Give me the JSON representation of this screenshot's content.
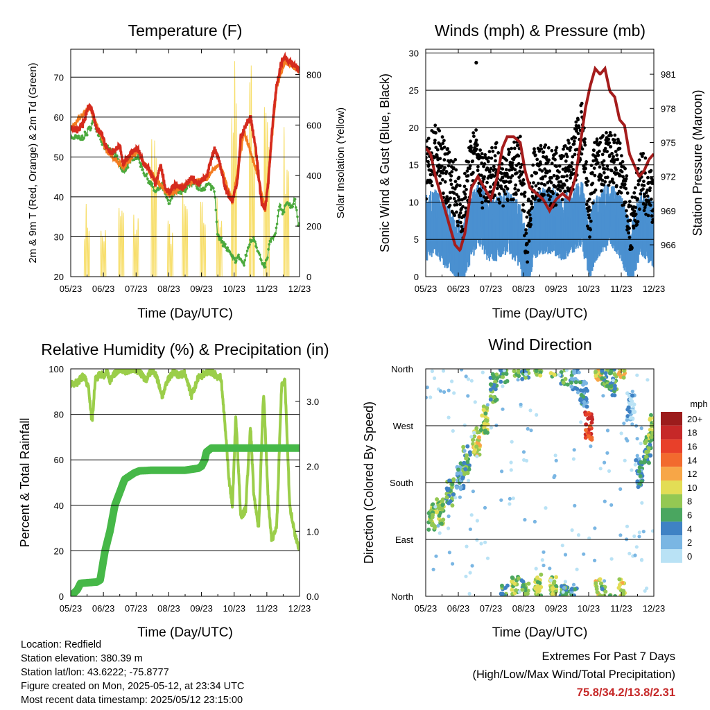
{
  "footer": {
    "location": "Location: Redfield",
    "elevation": "Station elevation: 380.39 m",
    "latlon": "Station lat/lon: 43.6222; -75.8777",
    "created": "Figure created on Mon, 2025-05-12, at 23:34 UTC",
    "recent": "Most recent data timestamp: 2025/05/12 23:15:00",
    "extremes_title": "Extremes For Past 7 Days",
    "extremes_sub": "(High/Low/Max Wind/Total Precipitation)",
    "extremes_values": "75.8/34.2/13.8/2.31"
  },
  "colors": {
    "temp2m": "#d52b1e",
    "temp9m": "#f47c20",
    "dewpoint": "#4aa93c",
    "solar": "#f7de6a",
    "wind": "#4a90d0",
    "gust": "#000000",
    "pressure": "#a51c1c",
    "rh": "#9bce4a",
    "precip": "#46b848"
  },
  "chart_data": [
    {
      "id": "temperature",
      "type": "line",
      "title": "Temperature (F)",
      "xlabel": "Time (Day/UTC)",
      "ylabel": "2m & 9m T (Red, Orange) & 2m Td (Green)",
      "ylabel_right": "Solar Insolation (Yellow)",
      "x_ticks": [
        "05/23",
        "06/23",
        "07/23",
        "08/23",
        "09/23",
        "10/23",
        "11/23",
        "12/23"
      ],
      "xlim": [
        0,
        7
      ],
      "ylim": [
        20,
        77
      ],
      "y_ticks": [
        20,
        30,
        40,
        50,
        60,
        70
      ],
      "ylim_right": [
        0,
        900
      ],
      "y_ticks_right": [
        0,
        200,
        400,
        600,
        800
      ],
      "grid": true,
      "series": [
        {
          "name": "2m T",
          "axis": "left",
          "color": "#d52b1e",
          "width": 4,
          "x": [
            0,
            0.2,
            0.4,
            0.55,
            0.65,
            0.8,
            0.95,
            1.1,
            1.25,
            1.5,
            1.6,
            1.75,
            1.9,
            2.05,
            2.25,
            2.4,
            2.6,
            2.75,
            2.9,
            3.0,
            3.2,
            3.45,
            3.6,
            3.75,
            3.9,
            4.0,
            4.15,
            4.4,
            4.55,
            4.7,
            4.85,
            4.95,
            5.1,
            5.2,
            5.3,
            5.5,
            5.65,
            5.75,
            5.85,
            5.95,
            6.05,
            6.15,
            6.3,
            6.45,
            6.55,
            6.7,
            6.85,
            7.0
          ],
          "y": [
            57.5,
            56.5,
            58.5,
            63,
            62,
            57,
            56,
            52,
            51,
            53,
            48,
            50,
            51.5,
            52,
            48,
            47,
            43,
            48,
            42,
            41,
            43,
            42,
            44,
            45,
            43,
            44,
            45,
            52,
            49,
            43,
            40,
            39,
            44,
            55,
            57,
            60,
            53,
            45,
            38,
            37,
            44,
            56,
            68,
            74,
            75,
            74,
            73,
            72
          ]
        },
        {
          "name": "9m T",
          "axis": "left",
          "color": "#f47c20",
          "width": 2,
          "x": [
            0,
            0.55,
            0.65,
            1.1,
            1.6,
            2.05,
            2.4,
            3.0,
            3.6,
            4.15,
            4.55,
            4.95,
            5.3,
            5.75,
            5.95,
            6.3,
            6.55,
            7.0
          ],
          "y": [
            57,
            62.5,
            61,
            51.5,
            47.5,
            51.5,
            46.5,
            40.5,
            43.5,
            44.5,
            48.5,
            38.5,
            56.5,
            44.5,
            36.5,
            67.5,
            74,
            71.5
          ]
        },
        {
          "name": "2m Td",
          "axis": "left",
          "color": "#4aa93c",
          "width": 2,
          "x": [
            0,
            0.3,
            0.5,
            0.7,
            0.85,
            1.0,
            1.2,
            1.4,
            1.6,
            1.75,
            1.9,
            2.05,
            2.25,
            2.4,
            2.6,
            2.8,
            3.0,
            3.2,
            3.4,
            3.6,
            3.8,
            4.0,
            4.2,
            4.4,
            4.5,
            4.7,
            4.85,
            5.0,
            5.15,
            5.3,
            5.45,
            5.6,
            5.75,
            5.9,
            6.0,
            6.1,
            6.25,
            6.4,
            6.5,
            6.6,
            6.75,
            6.85,
            6.95,
            7.0
          ],
          "y": [
            55,
            54.5,
            56,
            59,
            56,
            53,
            51.5,
            50,
            46,
            48,
            50,
            50,
            46,
            44,
            41,
            43,
            38,
            42,
            41,
            43,
            43,
            42,
            43,
            42,
            30,
            28,
            26,
            24,
            25,
            23,
            28,
            30,
            26,
            22,
            24,
            29,
            30,
            38,
            36,
            39,
            37,
            40,
            34,
            32
          ]
        },
        {
          "name": "Solar Insolation",
          "axis": "right",
          "color": "#f7de6a",
          "width": 1,
          "style": "daily-cycle",
          "x": [
            0.5,
            1.0,
            1.55,
            2.0,
            2.55,
            3.05,
            3.5,
            4.05,
            4.55,
            5.0,
            5.55,
            6.0,
            6.6
          ],
          "peak": [
            300,
            210,
            310,
            270,
            640,
            230,
            340,
            310,
            340,
            880,
            890,
            860,
            620
          ]
        }
      ]
    },
    {
      "id": "winds",
      "type": "scatter",
      "title": "Winds (mph) & Pressure (mb)",
      "xlabel": "Time (Day/UTC)",
      "ylabel": "Sonic Wind & Gust (Blue, Black)",
      "ylabel_right": "Station Pressure (Maroon)",
      "x_ticks": [
        "05/23",
        "06/23",
        "07/23",
        "08/23",
        "09/23",
        "10/23",
        "11/23",
        "12/23"
      ],
      "xlim": [
        0,
        7
      ],
      "ylim": [
        0,
        30.5
      ],
      "y_ticks": [
        0,
        5,
        10,
        15,
        20,
        25,
        30
      ],
      "ylim_right": [
        963.2,
        983.2
      ],
      "y_ticks_right": [
        966,
        969,
        972,
        975,
        978,
        981
      ],
      "grid": true,
      "series": [
        {
          "name": "Sonic Wind",
          "color": "#4a90d0",
          "style": "band",
          "x": [
            0,
            0.3,
            0.6,
            0.9,
            1.1,
            1.3,
            1.5,
            1.7,
            1.9,
            2.2,
            2.5,
            2.9,
            3.1,
            3.3,
            3.6,
            3.9,
            4.2,
            4.5,
            4.8,
            5.0,
            5.2,
            5.4,
            5.7,
            6.0,
            6.3,
            6.6,
            7.0
          ],
          "y": [
            7,
            8,
            6,
            5,
            3,
            6,
            8,
            9,
            7,
            7,
            8,
            6,
            2,
            7,
            8,
            8,
            7,
            8,
            9,
            4,
            7,
            8,
            9,
            7,
            3,
            8,
            6
          ]
        },
        {
          "name": "Gust",
          "color": "#000000",
          "style": "points",
          "x": [
            0,
            0.3,
            0.6,
            0.9,
            1.1,
            1.3,
            1.5,
            1.7,
            1.9,
            2.2,
            2.5,
            2.9,
            3.1,
            3.3,
            3.6,
            3.9,
            4.2,
            4.5,
            4.8,
            5.0,
            5.2,
            5.4,
            5.7,
            6.0,
            6.3,
            6.6,
            7.0
          ],
          "y": [
            14,
            17,
            14,
            12,
            8,
            13,
            17,
            13,
            14,
            14,
            13,
            15,
            5,
            14,
            14,
            13,
            14,
            15,
            20,
            8,
            15,
            15,
            16,
            14,
            6,
            13,
            11
          ],
          "outlier": {
            "x": 1.55,
            "y": 28.7
          }
        },
        {
          "name": "Pressure",
          "axis": "right",
          "color": "#a51c1c",
          "width": 4,
          "x": [
            0,
            0.15,
            0.3,
            0.5,
            0.7,
            0.9,
            1.05,
            1.2,
            1.4,
            1.6,
            1.8,
            2.0,
            2.2,
            2.35,
            2.5,
            2.7,
            2.9,
            3.05,
            3.2,
            3.4,
            3.6,
            3.8,
            4.0,
            4.2,
            4.4,
            4.6,
            4.75,
            4.9,
            5.05,
            5.2,
            5.35,
            5.5,
            5.65,
            5.8,
            5.95,
            6.1,
            6.25,
            6.4,
            6.55,
            6.7,
            6.85,
            7.0
          ],
          "y": [
            974.5,
            974,
            972,
            970,
            968,
            966,
            965.5,
            967,
            971,
            972,
            971,
            970,
            972,
            974.5,
            975.5,
            975.5,
            975,
            972.5,
            971,
            970.5,
            970,
            969,
            970,
            970.5,
            970,
            972,
            975,
            978,
            980,
            981.5,
            981,
            981.5,
            979.5,
            979,
            977,
            976.5,
            974,
            973,
            972,
            972.5,
            973.5,
            974
          ]
        }
      ]
    },
    {
      "id": "humidity",
      "type": "line",
      "title": "Relative Humidity (%) & Precipitation (in)",
      "xlabel": "Time (Day/UTC)",
      "ylabel": "Percent & Total Rainfall",
      "x_ticks": [
        "05/23",
        "06/23",
        "07/23",
        "08/23",
        "09/23",
        "10/23",
        "11/23",
        "12/23"
      ],
      "xlim": [
        0,
        7
      ],
      "ylim": [
        0,
        100
      ],
      "y_ticks": [
        0,
        20,
        40,
        60,
        80,
        100
      ],
      "ylim_right": [
        0,
        3.5
      ],
      "y_ticks_right": [
        "0.0",
        "1.0",
        "2.0",
        "3.0"
      ],
      "grid": true,
      "series": [
        {
          "name": "Relative Humidity",
          "color": "#9bce4a",
          "width": 4,
          "x": [
            0,
            0.2,
            0.4,
            0.55,
            0.65,
            0.75,
            0.9,
            1.0,
            1.1,
            1.2,
            1.35,
            1.5,
            1.7,
            1.9,
            2.1,
            2.3,
            2.45,
            2.6,
            2.8,
            3.0,
            3.15,
            3.3,
            3.5,
            3.7,
            3.9,
            4.1,
            4.3,
            4.45,
            4.6,
            4.75,
            4.85,
            4.95,
            5.05,
            5.2,
            5.35,
            5.5,
            5.6,
            5.75,
            5.9,
            6.05,
            6.15,
            6.3,
            6.45,
            6.55,
            6.7,
            6.85,
            7.0
          ],
          "y": [
            93,
            94,
            97,
            92,
            76,
            95,
            98,
            97,
            99,
            95,
            98,
            100,
            99,
            100,
            99,
            95,
            99,
            98,
            88,
            96,
            99,
            97,
            98,
            88,
            96,
            98,
            99,
            97,
            96,
            70,
            50,
            40,
            80,
            35,
            38,
            75,
            45,
            30,
            90,
            40,
            25,
            30,
            92,
            96,
            40,
            28,
            20
          ]
        },
        {
          "name": "Total Precipitation",
          "axis": "right",
          "color": "#46b848",
          "width": 9,
          "x": [
            0,
            0.2,
            0.3,
            0.8,
            0.9,
            1.05,
            1.2,
            1.35,
            1.5,
            1.65,
            1.8,
            1.95,
            2.1,
            2.5,
            3.0,
            3.5,
            3.9,
            4.0,
            4.1,
            4.15,
            4.3,
            5.0,
            6.0,
            7.0
          ],
          "y": [
            0,
            0.1,
            0.2,
            0.22,
            0.25,
            0.7,
            1.0,
            1.4,
            1.6,
            1.8,
            1.85,
            1.9,
            1.93,
            1.94,
            1.94,
            1.94,
            1.97,
            2.0,
            2.1,
            2.22,
            2.28,
            2.28,
            2.28,
            2.28
          ]
        }
      ]
    },
    {
      "id": "direction",
      "type": "scatter",
      "title": "Wind Direction",
      "xlabel": "Time (Day/UTC)",
      "ylabel": "Direction (Colored By Speed)",
      "x_ticks": [
        "05/23",
        "06/23",
        "07/23",
        "08/23",
        "09/23",
        "10/23",
        "11/23",
        "12/23"
      ],
      "xlim": [
        0,
        7
      ],
      "y_ticks": [
        "North",
        "East",
        "South",
        "West",
        "North"
      ],
      "ylim": [
        0,
        360
      ],
      "grid": true,
      "legend": {
        "title": "mph",
        "placement": "right",
        "labels": [
          "20+",
          "18",
          "16",
          "14",
          "12",
          "10",
          "8",
          "6",
          "4",
          "2",
          "0"
        ],
        "colors": [
          "#9c1c1c",
          "#c62828",
          "#e8402a",
          "#f26a2e",
          "#f7a647",
          "#e3dd55",
          "#94c853",
          "#4aa660",
          "#3f82c4",
          "#7ab6e3",
          "#b9e2f5"
        ]
      },
      "series": [
        {
          "name": "Clusters",
          "x": [
            0.2,
            0.45,
            0.75,
            1.05,
            1.25,
            1.55,
            1.8,
            2.1,
            2.4,
            2.75,
            3.05,
            3.45,
            3.9,
            4.25,
            4.55,
            4.85,
            5.0,
            5.3,
            5.5,
            5.75,
            6.0,
            6.3,
            6.55,
            6.8,
            6.95
          ],
          "y": [
            125,
            135,
            165,
            190,
            215,
            245,
            280,
            330,
            355,
            10,
            5,
            12,
            10,
            355,
            350,
            320,
            270,
            5,
            355,
            340,
            8,
            300,
            195,
            230,
            265
          ],
          "speed": [
            8,
            8,
            6,
            4,
            6,
            10,
            8,
            6,
            6,
            8,
            6,
            8,
            8,
            6,
            4,
            4,
            16,
            10,
            6,
            6,
            10,
            2,
            4,
            6,
            8
          ]
        }
      ]
    }
  ]
}
